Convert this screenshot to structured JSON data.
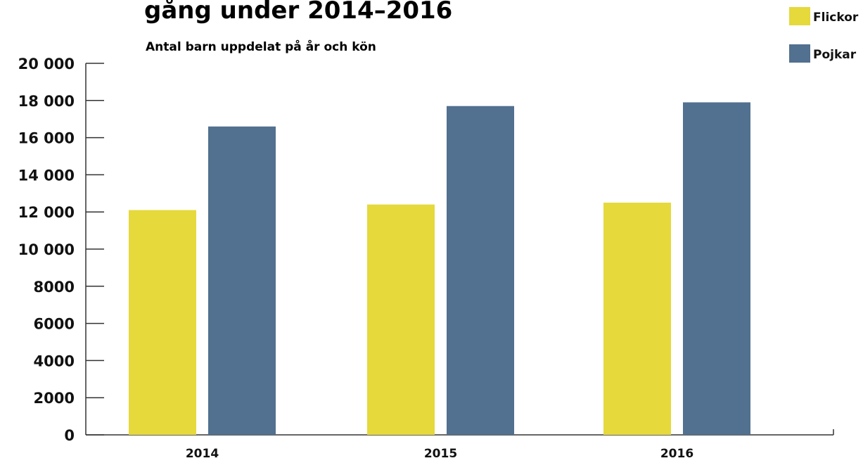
{
  "chart_data": {
    "type": "bar",
    "title": "gång under 2014–2016",
    "subtitle": "Antal barn uppdelat på år och kön",
    "categories": [
      "2014",
      "2015",
      "2016"
    ],
    "series": [
      {
        "name": "Flickor",
        "color": "#e5d93c",
        "values": [
          12100,
          12400,
          12500
        ]
      },
      {
        "name": "Pojkar",
        "color": "#52708f",
        "values": [
          16600,
          17700,
          17900
        ]
      }
    ],
    "yticks": [
      "0",
      "2000",
      "4000",
      "6000",
      "8000",
      "10 000",
      "12 000",
      "14 000",
      "16 000",
      "18 000",
      "20 000"
    ],
    "ylim": [
      0,
      20000
    ],
    "xlabel": "",
    "ylabel": "",
    "grid": false,
    "legend": "top-right"
  }
}
